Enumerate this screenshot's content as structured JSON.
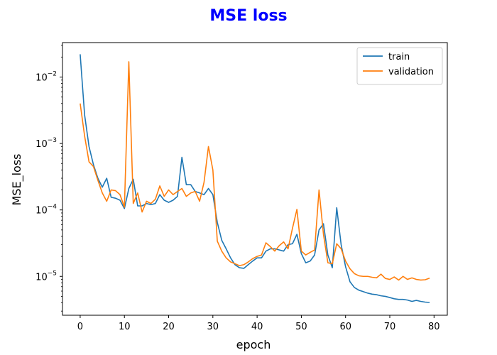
{
  "title": "MSE loss",
  "title_color": "#0000ff",
  "chart_data": {
    "type": "line",
    "title": "MSE loss",
    "xlabel": "epoch",
    "ylabel": "MSE_loss",
    "yscale": "log",
    "xlim": [
      -4,
      83
    ],
    "ylim": [
      2.6e-06,
      0.033
    ],
    "xticks": [
      0,
      10,
      20,
      30,
      40,
      50,
      60,
      70,
      80
    ],
    "yticks": [
      1e-05,
      0.0001,
      0.001,
      0.01
    ],
    "ytick_labels": [
      {
        "base": "10",
        "exp": "−5"
      },
      {
        "base": "10",
        "exp": "−4"
      },
      {
        "base": "10",
        "exp": "−3"
      },
      {
        "base": "10",
        "exp": "−2"
      }
    ],
    "grid": false,
    "legend_position": "top-right",
    "series": [
      {
        "name": "train",
        "color": "#1f77b4",
        "x": [
          0,
          1,
          2,
          3,
          4,
          5,
          6,
          7,
          8,
          9,
          10,
          11,
          12,
          13,
          14,
          15,
          16,
          17,
          18,
          19,
          20,
          21,
          22,
          23,
          24,
          25,
          26,
          27,
          28,
          29,
          30,
          31,
          32,
          33,
          34,
          35,
          36,
          37,
          38,
          39,
          40,
          41,
          42,
          43,
          44,
          45,
          46,
          47,
          48,
          49,
          50,
          51,
          52,
          53,
          54,
          55,
          56,
          57,
          58,
          59,
          60,
          61,
          62,
          63,
          64,
          65,
          66,
          67,
          68,
          69,
          70,
          71,
          72,
          73,
          74,
          75,
          76,
          77,
          78,
          79
        ],
        "y": [
          0.022,
          0.0027,
          0.0009,
          0.00048,
          0.0003,
          0.00022,
          0.0003,
          0.000155,
          0.00015,
          0.00014,
          0.000105,
          0.00021,
          0.00029,
          0.000115,
          0.000115,
          0.000125,
          0.00012,
          0.000125,
          0.00017,
          0.00014,
          0.00013,
          0.00014,
          0.00016,
          0.00062,
          0.00024,
          0.00024,
          0.00019,
          0.00018,
          0.00017,
          0.00021,
          0.00017,
          6.5e-05,
          3.5e-05,
          2.6e-05,
          1.9e-05,
          1.5e-05,
          1.35e-05,
          1.32e-05,
          1.5e-05,
          1.7e-05,
          1.9e-05,
          1.9e-05,
          2.4e-05,
          2.6e-05,
          2.6e-05,
          2.5e-05,
          2.4e-05,
          3e-05,
          3.1e-05,
          4.3e-05,
          2.2e-05,
          1.6e-05,
          1.7e-05,
          2.1e-05,
          5e-05,
          6.2e-05,
          2.1e-05,
          1.35e-05,
          0.000108,
          3e-05,
          1.4e-05,
          8.3e-06,
          6.8e-06,
          6.2e-06,
          5.9e-06,
          5.6e-06,
          5.4e-06,
          5.3e-06,
          5.1e-06,
          5e-06,
          4.8e-06,
          4.6e-06,
          4.5e-06,
          4.5e-06,
          4.4e-06,
          4.2e-06,
          4.35e-06,
          4.2e-06,
          4.1e-06,
          4.05e-06
        ]
      },
      {
        "name": "validation",
        "color": "#ff7f0e",
        "x": [
          0,
          1,
          2,
          3,
          4,
          5,
          6,
          7,
          8,
          9,
          10,
          11,
          12,
          13,
          14,
          15,
          16,
          17,
          18,
          19,
          20,
          21,
          22,
          23,
          24,
          25,
          26,
          27,
          28,
          29,
          30,
          31,
          32,
          33,
          34,
          35,
          36,
          37,
          38,
          39,
          40,
          41,
          42,
          43,
          44,
          45,
          46,
          47,
          48,
          49,
          50,
          51,
          52,
          53,
          54,
          55,
          56,
          57,
          58,
          59,
          60,
          61,
          62,
          63,
          64,
          65,
          66,
          67,
          68,
          69,
          70,
          71,
          72,
          73,
          74,
          75,
          76,
          77,
          78,
          79
        ],
        "y": [
          0.004,
          0.0013,
          0.00053,
          0.00045,
          0.00028,
          0.00018,
          0.000135,
          0.0002,
          0.000195,
          0.00017,
          0.00011,
          0.017,
          0.000125,
          0.00018,
          9.3e-05,
          0.000135,
          0.000125,
          0.000145,
          0.00023,
          0.00016,
          0.0002,
          0.00017,
          0.00019,
          0.00021,
          0.00016,
          0.00018,
          0.00019,
          0.000135,
          0.00026,
          0.0009,
          0.0004,
          3.4e-05,
          2.4e-05,
          1.9e-05,
          1.65e-05,
          1.55e-05,
          1.45e-05,
          1.5e-05,
          1.65e-05,
          1.85e-05,
          2e-05,
          2.1e-05,
          3.2e-05,
          2.8e-05,
          2.4e-05,
          2.9e-05,
          3.3e-05,
          2.6e-05,
          5.3e-05,
          0.000102,
          2.4e-05,
          2.1e-05,
          2.3e-05,
          2.5e-05,
          0.0002,
          4.3e-05,
          1.6e-05,
          1.55e-05,
          3.1e-05,
          2.6e-05,
          1.7e-05,
          1.3e-05,
          1.1e-05,
          1.02e-05,
          1e-05,
          1e-05,
          9.7e-06,
          9.5e-06,
          1.08e-05,
          9.3e-06,
          9e-06,
          9.8e-06,
          8.8e-06,
          1e-05,
          9e-06,
          9.5e-06,
          9e-06,
          8.8e-06,
          8.9e-06,
          9.4e-06
        ]
      }
    ]
  }
}
